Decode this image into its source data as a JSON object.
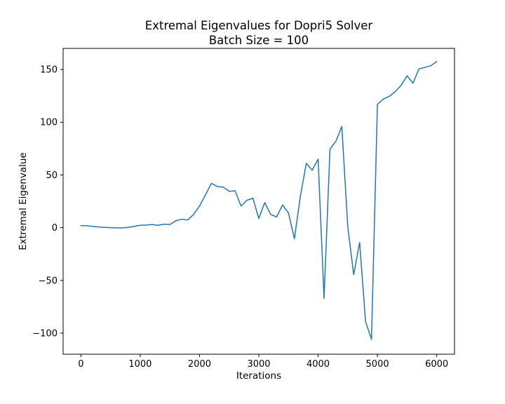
{
  "chart_data": {
    "type": "line",
    "title": [
      "Extremal Eigenvalues for Dopri5 Solver",
      "Batch Size = 100"
    ],
    "xlabel": "Iterations",
    "ylabel": "Extremal Eigenvalue",
    "xlim": [
      -300,
      6300
    ],
    "ylim": [
      -120,
      170
    ],
    "xticks": [
      0,
      1000,
      2000,
      3000,
      4000,
      5000,
      6000
    ],
    "xtick_labels": [
      "0",
      "1000",
      "2000",
      "3000",
      "4000",
      "5000",
      "6000"
    ],
    "yticks": [
      -100,
      -50,
      0,
      50,
      100,
      150
    ],
    "ytick_labels": [
      "−100",
      "−50",
      "0",
      "50",
      "100",
      "150"
    ],
    "grid": false,
    "legend": "none",
    "series": [
      {
        "color": "#1f77b4",
        "x": [
          0,
          100,
          200,
          300,
          400,
          500,
          600,
          700,
          800,
          900,
          1000,
          1100,
          1200,
          1300,
          1400,
          1500,
          1600,
          1700,
          1800,
          1900,
          2000,
          2100,
          2200,
          2300,
          2400,
          2500,
          2600,
          2700,
          2800,
          2900,
          3000,
          3100,
          3200,
          3300,
          3400,
          3500,
          3600,
          3700,
          3800,
          3900,
          4000,
          4100,
          4200,
          4300,
          4400,
          4500,
          4600,
          4700,
          4800,
          4900,
          5000,
          5100,
          5200,
          5300,
          5400,
          5500,
          5600,
          5700,
          5800,
          5900,
          6000
        ],
        "y": [
          2,
          1.8,
          1.2,
          0.6,
          0.3,
          0,
          -0.2,
          -0.2,
          0.3,
          1.2,
          2.3,
          2.5,
          3,
          2.2,
          3.3,
          3,
          6.5,
          8,
          7.3,
          12.5,
          20.5,
          31,
          42,
          39,
          38.5,
          34.5,
          35,
          20.5,
          26,
          28,
          8.7,
          23.8,
          12.5,
          10.2,
          21.5,
          14,
          -10.5,
          29.5,
          61,
          54.5,
          65,
          -67,
          74.5,
          82,
          96,
          1,
          -44.5,
          -14,
          -89,
          -106,
          117,
          122,
          124.5,
          129,
          135,
          144,
          137,
          150.5,
          152,
          153.5,
          157.5
        ]
      }
    ]
  }
}
